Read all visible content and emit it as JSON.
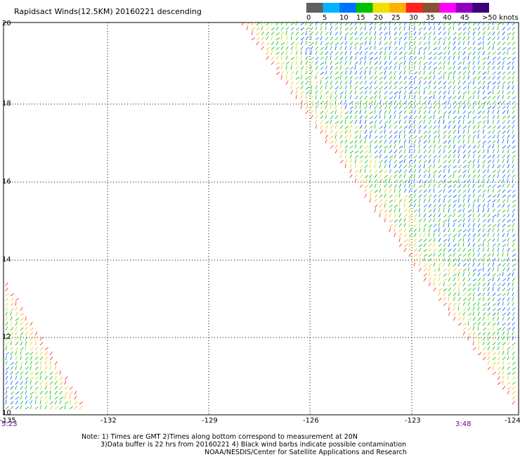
{
  "title": "Rapidsact Winds(12.5KM) 20160221 descending",
  "legend": {
    "bins": [
      {
        "label": "0",
        "color": "#606060"
      },
      {
        "label": "5",
        "color": "#00b4ff"
      },
      {
        "label": "10",
        "color": "#0070ff"
      },
      {
        "label": "15",
        "color": "#00c000"
      },
      {
        "label": "20",
        "color": "#f0e000"
      },
      {
        "label": "25",
        "color": "#ffb000"
      },
      {
        "label": "30",
        "color": "#ff2020"
      },
      {
        "label": "35",
        "color": "#8a5030"
      },
      {
        "label": "40",
        "color": "#ff00ff"
      },
      {
        "label": "45",
        "color": "#9000c0"
      },
      {
        "label": ">50 knots",
        "color": "#3c0078"
      }
    ]
  },
  "map": {
    "lon_range": [
      -135,
      -124
    ],
    "lat_range": [
      10,
      20
    ],
    "lon_ticks": [
      "-135",
      "-132",
      "-129",
      "-126",
      "-123",
      "-124"
    ],
    "lat_ticks": [
      "20",
      "18",
      "16",
      "14",
      "12",
      "10"
    ]
  },
  "times": {
    "left": "5:23",
    "right": "3:48"
  },
  "notes": {
    "line1": "Note: 1) Times are GMT 2)Times along bottom correspond to measurement at 20N",
    "line2": "3)Data buffer is 22 hrs from 20160221 4) Black wind barbs indicate possible contamination",
    "line3": "NOAA/NESDIS/Center for Satellite Applications and Research"
  }
}
